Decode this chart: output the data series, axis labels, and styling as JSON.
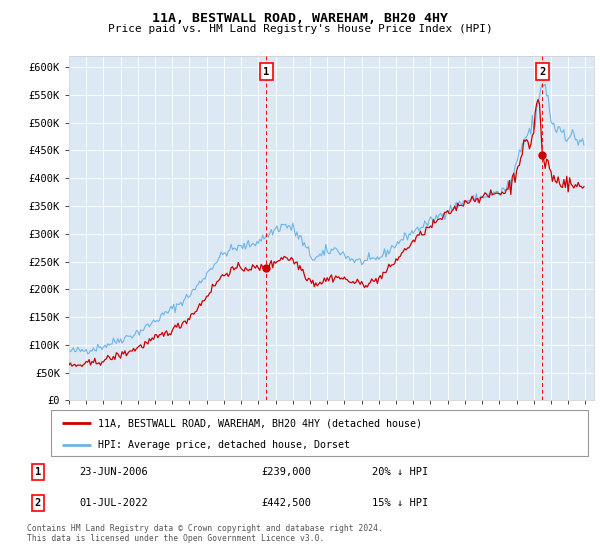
{
  "title": "11A, BESTWALL ROAD, WAREHAM, BH20 4HY",
  "subtitle": "Price paid vs. HM Land Registry's House Price Index (HPI)",
  "xlim_start": 1995.0,
  "xlim_end": 2025.5,
  "ylim_min": 0,
  "ylim_max": 620000,
  "yticks": [
    0,
    50000,
    100000,
    150000,
    200000,
    250000,
    300000,
    350000,
    400000,
    450000,
    500000,
    550000,
    600000
  ],
  "ytick_labels": [
    "£0",
    "£50K",
    "£100K",
    "£150K",
    "£200K",
    "£250K",
    "£300K",
    "£350K",
    "£400K",
    "£450K",
    "£500K",
    "£550K",
    "£600K"
  ],
  "xticks": [
    1995,
    1996,
    1997,
    1998,
    1999,
    2000,
    2001,
    2002,
    2003,
    2004,
    2005,
    2006,
    2007,
    2008,
    2009,
    2010,
    2011,
    2012,
    2013,
    2014,
    2015,
    2016,
    2017,
    2018,
    2019,
    2020,
    2021,
    2022,
    2023,
    2024,
    2025
  ],
  "bg_color": "#dce9f5",
  "fig_bg": "#ffffff",
  "hpi_color": "#6eb4e8",
  "price_color": "#cc0000",
  "marker1_date": 2006.47,
  "marker1_price": 239000,
  "marker2_date": 2022.5,
  "marker2_price": 442500,
  "legend_line1": "11A, BESTWALL ROAD, WAREHAM, BH20 4HY (detached house)",
  "legend_line2": "HPI: Average price, detached house, Dorset",
  "table_row1": [
    "1",
    "23-JUN-2006",
    "£239,000",
    "20% ↓ HPI"
  ],
  "table_row2": [
    "2",
    "01-JUL-2022",
    "£442,500",
    "15% ↓ HPI"
  ],
  "footnote": "Contains HM Land Registry data © Crown copyright and database right 2024.\nThis data is licensed under the Open Government Licence v3.0."
}
